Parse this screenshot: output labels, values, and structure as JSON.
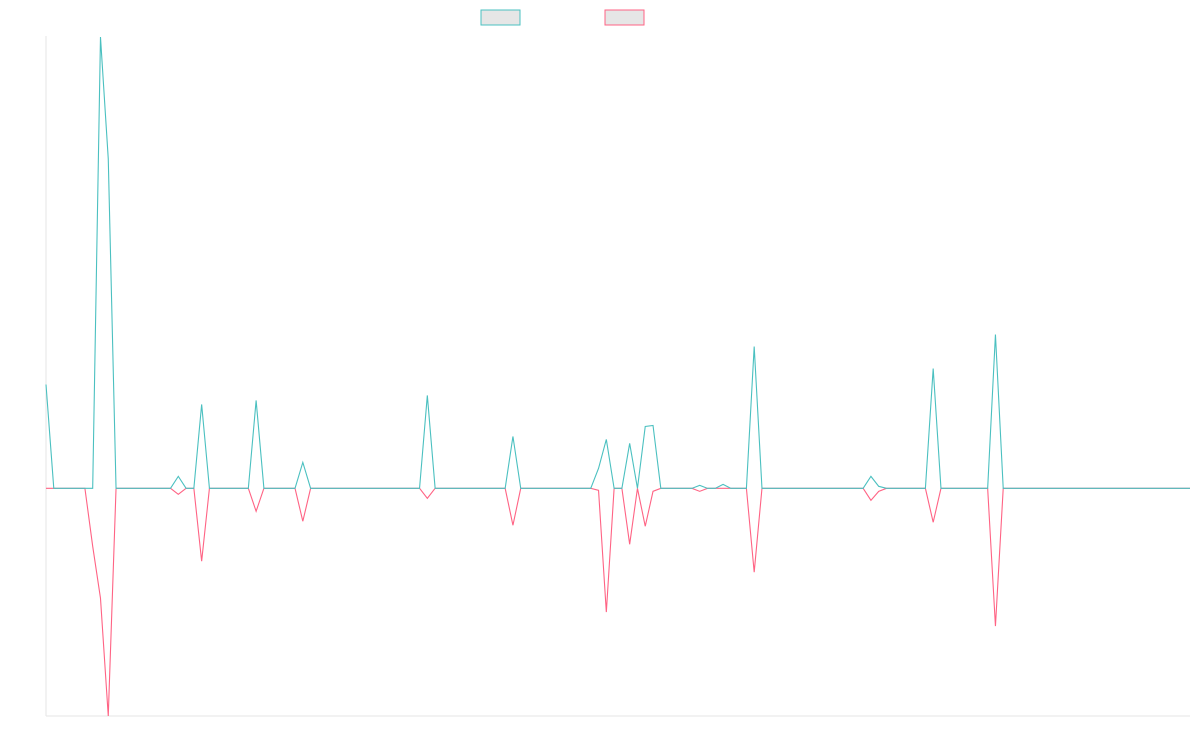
{
  "colors": {
    "series_a": "#4bc0c0",
    "series_b": "#ff6384",
    "axis": "#e5e5e5",
    "legend_fill": "#e6e6e6",
    "background": "#ffffff"
  },
  "chart_data": {
    "type": "line",
    "title": "",
    "xlabel": "",
    "ylabel": "",
    "grid": false,
    "legend": "top-center",
    "x": [
      0,
      1,
      2,
      3,
      4,
      5,
      6,
      7,
      8,
      9,
      10,
      11,
      12,
      13,
      14,
      15,
      16,
      17,
      18,
      19,
      20,
      21,
      22,
      23,
      24,
      25,
      26,
      27,
      28,
      29,
      30,
      31,
      32,
      33,
      34,
      35,
      36,
      37,
      38,
      39,
      40,
      41,
      42,
      43,
      44,
      45,
      46,
      47,
      48,
      49,
      50,
      51,
      52,
      53,
      54,
      55,
      56,
      57,
      58,
      59,
      60,
      61,
      62,
      63,
      64,
      65,
      66,
      67,
      68,
      69,
      70,
      71,
      72,
      73,
      74,
      75,
      76,
      77,
      78,
      79,
      80,
      81,
      82,
      83,
      84,
      85,
      86,
      87,
      88,
      89,
      90,
      91,
      92,
      93,
      94,
      95,
      96,
      97,
      98,
      99,
      100,
      101,
      102,
      103,
      104,
      105,
      106,
      107,
      108,
      109,
      110,
      111,
      112,
      113,
      114,
      115,
      116,
      117,
      118,
      119,
      120,
      121,
      122,
      123,
      124,
      125,
      126,
      127,
      128,
      129,
      130,
      131,
      132,
      133,
      134,
      135,
      136,
      137,
      138,
      139,
      140,
      141,
      142,
      143,
      144,
      145,
      146,
      147
    ],
    "ylim": [
      -228,
      453
    ],
    "series": [
      {
        "name": "",
        "color": "#4bc0c0",
        "values": [
          104,
          0,
          0,
          0,
          0,
          0,
          0,
          452,
          330,
          0,
          0,
          0,
          0,
          0,
          0,
          0,
          0,
          12,
          0,
          0,
          84,
          0,
          0,
          0,
          0,
          0,
          0,
          88,
          0,
          0,
          0,
          0,
          0,
          26,
          0,
          0,
          0,
          0,
          0,
          0,
          0,
          0,
          0,
          0,
          0,
          0,
          0,
          0,
          0,
          93,
          0,
          0,
          0,
          0,
          0,
          0,
          0,
          0,
          0,
          0,
          52,
          0,
          0,
          0,
          0,
          0,
          0,
          0,
          0,
          0,
          0,
          20,
          49,
          0,
          0,
          45,
          0,
          62,
          63,
          0,
          0,
          0,
          0,
          0,
          3,
          0,
          0,
          4,
          0,
          0,
          0,
          142,
          0,
          0,
          0,
          0,
          0,
          0,
          0,
          0,
          0,
          0,
          0,
          0,
          0,
          0,
          12,
          2,
          0,
          0,
          0,
          0,
          0,
          0,
          120,
          0,
          0,
          0,
          0,
          0,
          0,
          0,
          154,
          0,
          0,
          0,
          0,
          0,
          0,
          0,
          0,
          0,
          0,
          0,
          0,
          0,
          0,
          0,
          0,
          0,
          0,
          0,
          0,
          0,
          0,
          0,
          0,
          0
        ]
      },
      {
        "name": "",
        "color": "#ff6384",
        "values": [
          0,
          0,
          0,
          0,
          0,
          0,
          -58,
          -110,
          -228,
          0,
          0,
          0,
          0,
          0,
          0,
          0,
          0,
          -6,
          0,
          0,
          -73,
          0,
          0,
          0,
          0,
          0,
          0,
          -23,
          0,
          0,
          0,
          0,
          0,
          -33,
          0,
          0,
          0,
          0,
          0,
          0,
          0,
          0,
          0,
          0,
          0,
          0,
          0,
          0,
          0,
          -10,
          0,
          0,
          0,
          0,
          0,
          0,
          0,
          0,
          0,
          0,
          -37,
          0,
          0,
          0,
          0,
          0,
          0,
          0,
          0,
          0,
          0,
          -2,
          -124,
          0,
          0,
          -56,
          0,
          -38,
          -3,
          0,
          0,
          0,
          0,
          0,
          -3,
          0,
          0,
          0,
          0,
          0,
          0,
          -84,
          0,
          0,
          0,
          0,
          0,
          0,
          0,
          0,
          0,
          0,
          0,
          0,
          0,
          0,
          -12,
          -3,
          0,
          0,
          0,
          0,
          0,
          0,
          -34,
          0,
          0,
          0,
          0,
          0,
          0,
          0,
          -138,
          0,
          0,
          0,
          0,
          0,
          0,
          0,
          0,
          0,
          0,
          0,
          0,
          0,
          0,
          0,
          0,
          0,
          0,
          0,
          0,
          0,
          0,
          0,
          0,
          0
        ]
      }
    ]
  }
}
